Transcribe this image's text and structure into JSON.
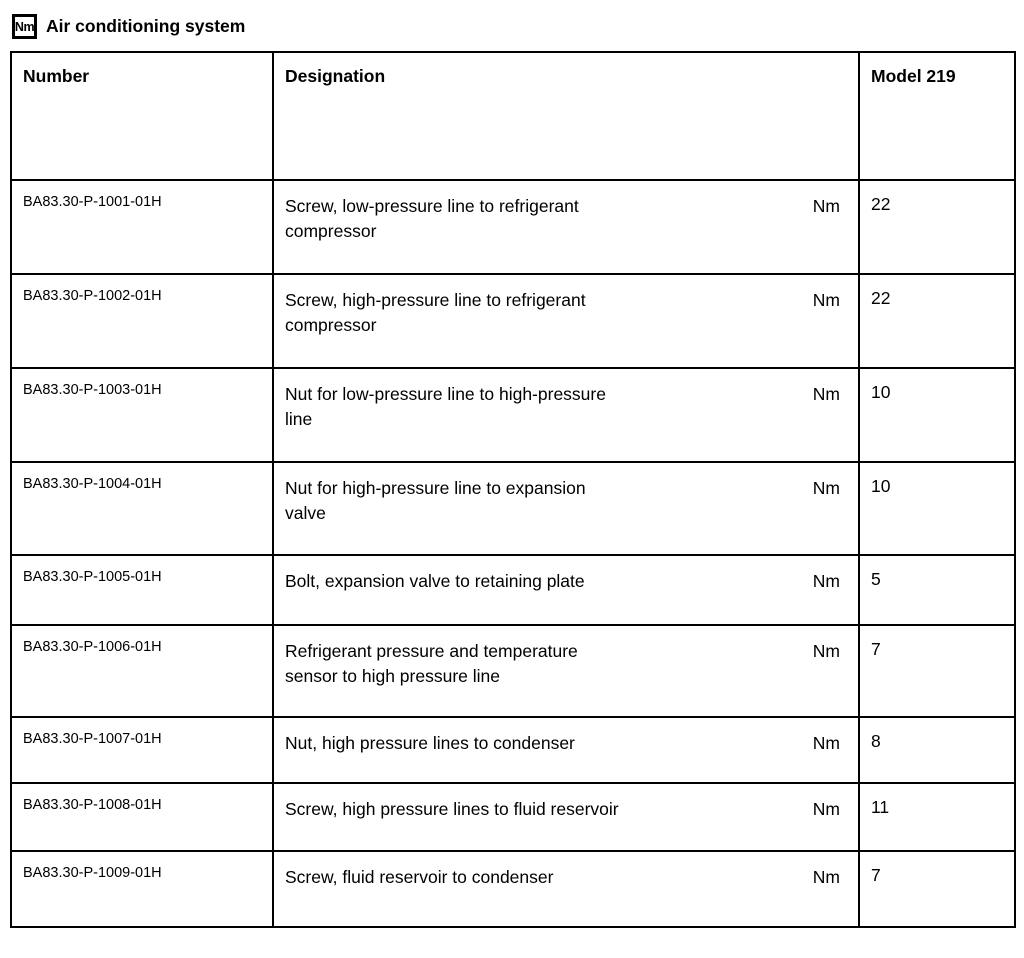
{
  "page": {
    "icon_label": "Nm",
    "title": "Air conditioning system",
    "text_color": "#000000",
    "background_color": "#ffffff",
    "border_color": "#000000"
  },
  "table": {
    "headers": {
      "number": "Number",
      "designation": "Designation",
      "model": "Model 219"
    },
    "rows": [
      {
        "number": "BA83.30-P-1001-01H",
        "designation": "Screw, low-pressure line to refrigerant\ncompressor",
        "unit": "Nm",
        "value": "22"
      },
      {
        "number": "BA83.30-P-1002-01H",
        "designation": "Screw, high-pressure line to refrigerant\ncompressor",
        "unit": "Nm",
        "value": "22"
      },
      {
        "number": "BA83.30-P-1003-01H",
        "designation": "Nut for low-pressure line to high-pressure\nline",
        "unit": "Nm",
        "value": "10"
      },
      {
        "number": "BA83.30-P-1004-01H",
        "designation": "Nut for high-pressure line to expansion\nvalve",
        "unit": "Nm",
        "value": "10"
      },
      {
        "number": "BA83.30-P-1005-01H",
        "designation": "Bolt, expansion valve to retaining plate",
        "unit": "Nm",
        "value": "5"
      },
      {
        "number": "BA83.30-P-1006-01H",
        "designation": "Refrigerant pressure and temperature\nsensor to high pressure line",
        "unit": "Nm",
        "value": "7"
      },
      {
        "number": "BA83.30-P-1007-01H",
        "designation": "Nut, high pressure lines to condenser",
        "unit": "Nm",
        "value": "8"
      },
      {
        "number": "BA83.30-P-1008-01H",
        "designation": "Screw, high pressure lines to fluid reservoir",
        "unit": "Nm",
        "value": "11"
      },
      {
        "number": "BA83.30-P-1009-01H",
        "designation": "Screw, fluid reservoir to condenser",
        "unit": "Nm",
        "value": "7"
      }
    ]
  }
}
